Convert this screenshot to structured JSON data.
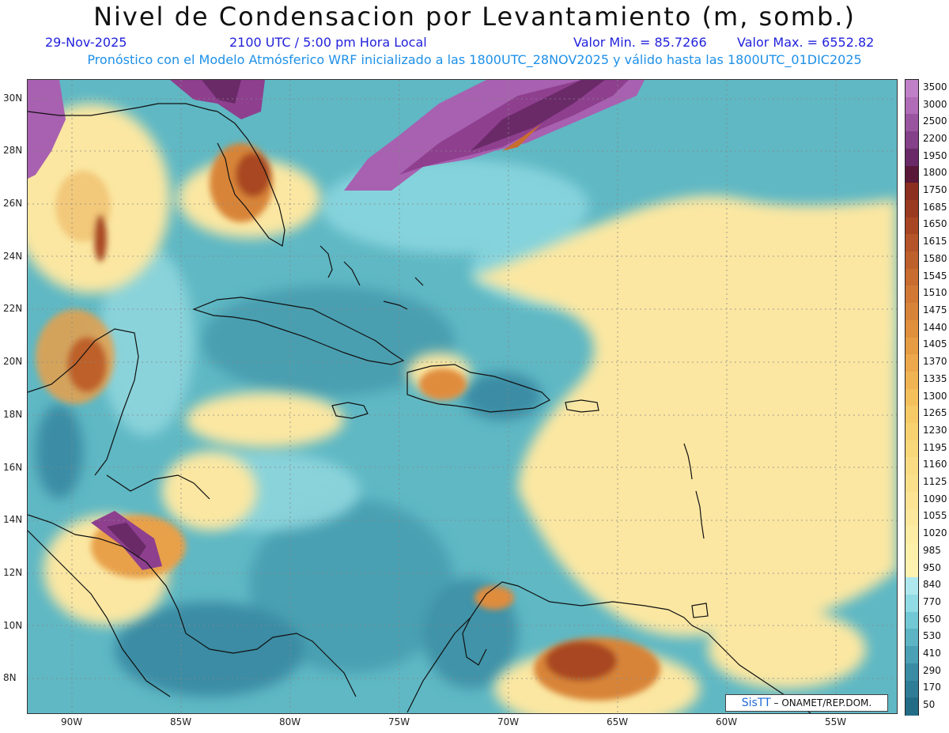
{
  "header": {
    "title": "Nivel de Condensacion por Levantamiento (m, somb.)",
    "date": "29-Nov-2025",
    "time": "2100 UTC / 5:00 pm Hora Local",
    "min_label": "Valor Min. = 85.7266",
    "max_label": "Valor Max. = 6552.82",
    "model_line": "Pronóstico con el Modelo Atmósferico WRF inicializado a las 1800UTC_28NOV2025 y válido hasta las  1800UTC_01DIC2025"
  },
  "axes": {
    "lat_labels": [
      "30N",
      "28N",
      "26N",
      "24N",
      "22N",
      "20N",
      "18N",
      "16N",
      "14N",
      "12N",
      "10N",
      "8N"
    ],
    "lon_labels": [
      "90W",
      "85W",
      "80W",
      "75W",
      "70W",
      "65W",
      "60W",
      "55W"
    ]
  },
  "colorbar": {
    "levels": [
      "3500",
      "3000",
      "2500",
      "2200",
      "1950",
      "1800",
      "1750",
      "1685",
      "1650",
      "1615",
      "1580",
      "1545",
      "1510",
      "1475",
      "1440",
      "1405",
      "1370",
      "1335",
      "1300",
      "1265",
      "1230",
      "1195",
      "1160",
      "1125",
      "1090",
      "1055",
      "1020",
      "985",
      "950",
      "840",
      "770",
      "650",
      "530",
      "410",
      "290",
      "170",
      "50"
    ],
    "colors": [
      "#c080c8",
      "#b06cb6",
      "#9a55a0",
      "#844088",
      "#6a2a68",
      "#5a1838",
      "#8c2e20",
      "#9a3a20",
      "#a84624",
      "#b45428",
      "#be602c",
      "#c86c30",
      "#d07834",
      "#d88438",
      "#e0903c",
      "#e69c42",
      "#eca84a",
      "#f0b452",
      "#f4c05c",
      "#f6ca66",
      "#f8d270",
      "#f9d87a",
      "#fadc84",
      "#fbe08c",
      "#fce494",
      "#fce89c",
      "#fdeca4",
      "#fdf0aa",
      "#fdf2b0",
      "#aee8ee",
      "#90dbe4",
      "#72c8d4",
      "#5cb4c4",
      "#4aa0b4",
      "#3a8ca4",
      "#2e7c96",
      "#226c86"
    ]
  },
  "map": {
    "ocean_color": "#5fb8c4",
    "credit_brand": "SisTT",
    "credit_text": "– ONAMET/REP.DOM."
  }
}
